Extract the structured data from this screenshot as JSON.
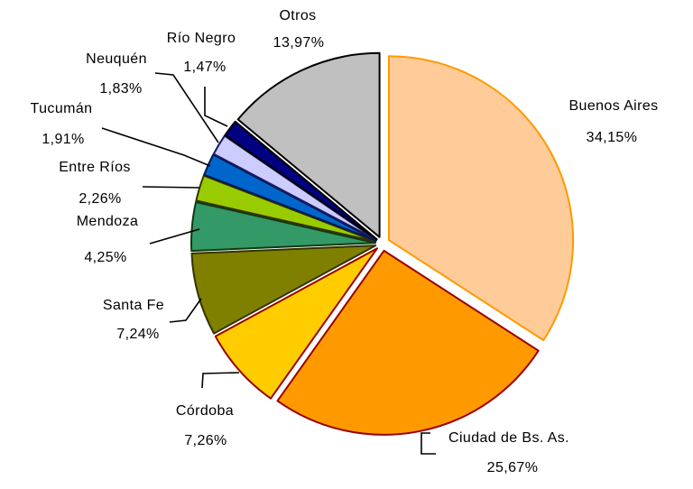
{
  "page": {
    "background_color": "#FFFFFF",
    "text_color": "#000000"
  },
  "chart_data": {
    "type": "pie",
    "title": "",
    "unit": "%",
    "decimal_separator": ",",
    "exploded": true,
    "legend_position": "none",
    "start_angle_deg": 0,
    "direction": "clockwise",
    "slices": [
      {
        "label": "Buenos Aires",
        "value": 34.15,
        "display": "34,15%",
        "color": "#FFCC99",
        "border": "#FF9900"
      },
      {
        "label": "Ciudad de Bs. As.",
        "value": 25.67,
        "display": "25,67%",
        "color": "#FF9900",
        "border": "#990000"
      },
      {
        "label": "Córdoba",
        "value": 7.26,
        "display": "7,26%",
        "color": "#FFCC00",
        "border": "#990000"
      },
      {
        "label": "Santa Fe",
        "value": 7.24,
        "display": "7,24%",
        "color": "#808000",
        "border": "#333300"
      },
      {
        "label": "Mendoza",
        "value": 4.25,
        "display": "4,25%",
        "color": "#339966",
        "border": "#103A10"
      },
      {
        "label": "Entre Ríos",
        "value": 2.26,
        "display": "2,26%",
        "color": "#99CC00",
        "border": "#333300"
      },
      {
        "label": "Tucumán",
        "value": 1.91,
        "display": "1,91%",
        "color": "#0066CC",
        "border": "#001A4D"
      },
      {
        "label": "Neuquén",
        "value": 1.83,
        "display": "1,83%",
        "color": "#CCCCFF",
        "border": "#1A1A66"
      },
      {
        "label": "Río Negro",
        "value": 1.47,
        "display": "1,47%",
        "color": "#000080",
        "border": "#000000"
      },
      {
        "label": "Otros",
        "value": 13.97,
        "display": "13,97%",
        "color": "#C0C0C0",
        "border": "#000000"
      }
    ]
  }
}
